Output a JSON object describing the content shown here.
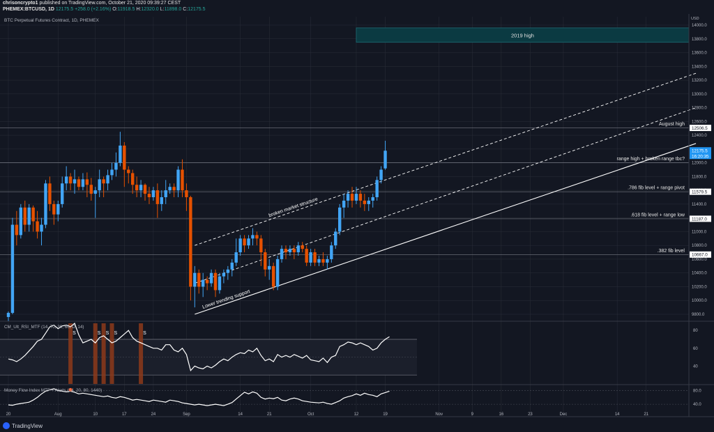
{
  "header": {
    "author": "chrisoncrypto1",
    "published": "published on TradingView.com, October 21, 2020 09:39:27 CEST",
    "symbol": "PHEMEX:BTCUSD, 1D",
    "price": "12175.5",
    "change": "+258.0 (+2.16%)",
    "o_label": "O:",
    "o": "11918.5",
    "h_label": "H:",
    "h": "12320.0",
    "l_label": "L:",
    "l": "11898.0",
    "c_label": "C:",
    "c": "12175.5"
  },
  "footer": {
    "logo_text": "TradingView"
  },
  "colors": {
    "bg": "#131722",
    "up": "#42a5f5",
    "down": "#e65100",
    "grid": "#2a2e39",
    "text": "#d1d4dc",
    "highlight_zone": "#0b3a42"
  },
  "chart_data": {
    "type": "candlestick",
    "title": "BTC Perpetual Futures Contract, 1D, PHEMEX",
    "currency_label": "USD",
    "y_ticks": [
      9800,
      10000,
      10200,
      10400,
      10600,
      10800,
      11000,
      11200,
      11400,
      11600,
      11800,
      12000,
      12200,
      12400,
      12600,
      12800,
      13000,
      13200,
      13400,
      13600,
      13800,
      14000
    ],
    "x_ticks": [
      {
        "label": "20",
        "day": 0
      },
      {
        "label": "Aug",
        "day": 12
      },
      {
        "label": "10",
        "day": 21
      },
      {
        "label": "17",
        "day": 28
      },
      {
        "label": "24",
        "day": 35
      },
      {
        "label": "Sep",
        "day": 43
      },
      {
        "label": "14",
        "day": 56
      },
      {
        "label": "21",
        "day": 63
      },
      {
        "label": "Oct",
        "day": 73
      },
      {
        "label": "12",
        "day": 84
      },
      {
        "label": "19",
        "day": 91
      },
      {
        "label": "Nov",
        "day": 104
      },
      {
        "label": "9",
        "day": 112
      },
      {
        "label": "16",
        "day": 119
      },
      {
        "label": "23",
        "day": 126
      },
      {
        "label": "Dec",
        "day": 134
      },
      {
        "label": "14",
        "day": 147
      },
      {
        "label": "21",
        "day": 154
      }
    ],
    "candles": [
      [
        9760,
        9840,
        9700,
        9820
      ],
      [
        9820,
        11200,
        9800,
        11100
      ],
      [
        11100,
        11300,
        10800,
        10950
      ],
      [
        10950,
        11400,
        10900,
        11350
      ],
      [
        11350,
        11450,
        11000,
        11100
      ],
      [
        11100,
        11400,
        11000,
        11350
      ],
      [
        11350,
        11380,
        11000,
        11150
      ],
      [
        11150,
        11300,
        10900,
        11000
      ],
      [
        11000,
        11200,
        10800,
        11100
      ],
      [
        11100,
        11750,
        11050,
        11700
      ],
      [
        11700,
        11800,
        11300,
        11400
      ],
      [
        11400,
        11450,
        11100,
        11250
      ],
      [
        11250,
        11450,
        11150,
        11400
      ],
      [
        11400,
        11800,
        11350,
        11700
      ],
      [
        11700,
        11950,
        11600,
        11800
      ],
      [
        11800,
        11850,
        11600,
        11700
      ],
      [
        11700,
        11900,
        11550,
        11760
      ],
      [
        11760,
        11800,
        11600,
        11650
      ],
      [
        11650,
        11850,
        11600,
        11760
      ],
      [
        11760,
        11860,
        11500,
        11680
      ],
      [
        11680,
        11780,
        11450,
        11550
      ],
      [
        11550,
        11650,
        11200,
        11600
      ],
      [
        11600,
        11900,
        11500,
        11760
      ],
      [
        11760,
        11800,
        11500,
        11700
      ],
      [
        11700,
        11900,
        11600,
        11820
      ],
      [
        11820,
        12000,
        11750,
        11900
      ],
      [
        11900,
        12150,
        11800,
        12000
      ],
      [
        12000,
        12450,
        11950,
        12250
      ],
      [
        12250,
        12300,
        11650,
        11900
      ],
      [
        11900,
        11950,
        11700,
        11850
      ],
      [
        11850,
        11900,
        11550,
        11680
      ],
      [
        11680,
        11800,
        11500,
        11600
      ],
      [
        11600,
        11750,
        11500,
        11680
      ],
      [
        11680,
        11700,
        11450,
        11550
      ],
      [
        11550,
        11650,
        11400,
        11500
      ],
      [
        11500,
        11650,
        11450,
        11600
      ],
      [
        11600,
        11700,
        11200,
        11400
      ],
      [
        11400,
        11600,
        11300,
        11500
      ],
      [
        11500,
        11750,
        11400,
        11600
      ],
      [
        11600,
        11700,
        11550,
        11650
      ],
      [
        11650,
        11700,
        11500,
        11600
      ],
      [
        11600,
        11950,
        11500,
        11900
      ],
      [
        11900,
        12050,
        11500,
        11600
      ],
      [
        11600,
        11700,
        11300,
        11500
      ],
      [
        11500,
        11520,
        10000,
        10200
      ],
      [
        10200,
        10500,
        9900,
        10400
      ],
      [
        10400,
        10450,
        10100,
        10200
      ],
      [
        10200,
        10400,
        10050,
        10300
      ],
      [
        10300,
        10350,
        10150,
        10250
      ],
      [
        10250,
        10450,
        10200,
        10400
      ],
      [
        10400,
        10450,
        10050,
        10150
      ],
      [
        10150,
        10400,
        10100,
        10350
      ],
      [
        10350,
        10450,
        10250,
        10400
      ],
      [
        10400,
        10500,
        10300,
        10450
      ],
      [
        10450,
        10600,
        10350,
        10550
      ],
      [
        10550,
        10900,
        10500,
        10700
      ],
      [
        10700,
        10950,
        10650,
        10900
      ],
      [
        10900,
        10950,
        10700,
        10800
      ],
      [
        10800,
        10950,
        10750,
        10900
      ],
      [
        10900,
        11050,
        10800,
        10950
      ],
      [
        10950,
        11000,
        10800,
        10900
      ],
      [
        10900,
        10950,
        10500,
        10700
      ],
      [
        10700,
        10750,
        10350,
        10450
      ],
      [
        10450,
        10600,
        10300,
        10500
      ],
      [
        10500,
        10550,
        10150,
        10200
      ],
      [
        10200,
        10650,
        10150,
        10600
      ],
      [
        10600,
        10800,
        10550,
        10750
      ],
      [
        10750,
        10800,
        10600,
        10700
      ],
      [
        10700,
        10800,
        10650,
        10750
      ],
      [
        10750,
        10800,
        10600,
        10700
      ],
      [
        10700,
        10850,
        10650,
        10800
      ],
      [
        10800,
        10850,
        10700,
        10750
      ],
      [
        10750,
        10800,
        10500,
        10550
      ],
      [
        10550,
        10750,
        10500,
        10700
      ],
      [
        10700,
        10750,
        10500,
        10550
      ],
      [
        10550,
        10650,
        10500,
        10600
      ],
      [
        10600,
        10700,
        10500,
        10550
      ],
      [
        10550,
        10650,
        10450,
        10600
      ],
      [
        10600,
        10850,
        10550,
        10800
      ],
      [
        10800,
        11050,
        10750,
        11000
      ],
      [
        11000,
        11400,
        10950,
        11350
      ],
      [
        11350,
        11550,
        11200,
        11450
      ],
      [
        11450,
        11600,
        11350,
        11550
      ],
      [
        11550,
        11650,
        11350,
        11450
      ],
      [
        11450,
        11650,
        11400,
        11550
      ],
      [
        11550,
        11600,
        11350,
        11450
      ],
      [
        11450,
        11550,
        11300,
        11400
      ],
      [
        11400,
        11500,
        11300,
        11450
      ],
      [
        11450,
        11550,
        11350,
        11500
      ],
      [
        11500,
        11800,
        11450,
        11750
      ],
      [
        11750,
        11950,
        11700,
        11900
      ],
      [
        11918.5,
        12320,
        11898,
        12175.5
      ]
    ],
    "horizontal_levels": [
      {
        "price": 12506.5,
        "label": "August high",
        "tag": "12506.5"
      },
      {
        "price": 12000,
        "label": "range high + broken range tbc?",
        "tag": ""
      },
      {
        "price": 11579.5,
        "label": ".786 fib level + range pivot",
        "tag": "11579.5"
      },
      {
        "price": 11187.0,
        "label": ".618 fib level + range low",
        "tag": "11187.0"
      },
      {
        "price": 10667.0,
        "label": ".382 fib level",
        "tag": "10667.0"
      }
    ],
    "last_price_tag": "12175.5",
    "countdown_tag": "16:20:35",
    "zone": {
      "label": "2019 high",
      "price_low": 13750,
      "price_high": 13960,
      "day_start": 84,
      "day_end": 166
    },
    "trendlines": [
      {
        "name": "lower-trending-support",
        "style": "solid",
        "label": "Lower trending support",
        "p1": [
          45,
          9800
        ],
        "p2": [
          166,
          12280
        ]
      },
      {
        "name": "upper-dashed-channel",
        "style": "dashed",
        "label": "broken market structure",
        "p1": [
          45,
          10800
        ],
        "p2": [
          166,
          13300
        ]
      },
      {
        "name": "middle-dashed-channel",
        "style": "dashed",
        "label": "",
        "p1": [
          45,
          10250
        ],
        "p2": [
          166,
          12800
        ]
      }
    ],
    "rsi": {
      "title": "CM_Ult_RSI_MTF (14, 70, 30, 60, D, 14)",
      "levels": [
        70,
        30
      ],
      "ticks": [
        80,
        60,
        40
      ],
      "signal_label": "S",
      "signals": [
        15,
        21,
        23,
        25,
        32
      ],
      "values": [
        48,
        47,
        45,
        48,
        52,
        57,
        62,
        68,
        70,
        77,
        84,
        86,
        82,
        85,
        86,
        84,
        88,
        75,
        66,
        68,
        70,
        66,
        72,
        74,
        70,
        66,
        68,
        72,
        76,
        80,
        72,
        68,
        66,
        64,
        62,
        60,
        60,
        58,
        64,
        64,
        58,
        56,
        60,
        53,
        35,
        40,
        38,
        37,
        40,
        38,
        41,
        45,
        48,
        46,
        50,
        53,
        55,
        54,
        58,
        56,
        60,
        52,
        46,
        48,
        45,
        53,
        50,
        52,
        50,
        53,
        51,
        49,
        52,
        47,
        46,
        45,
        49,
        44,
        50,
        52,
        62,
        64,
        67,
        66,
        64,
        66,
        64,
        62,
        58,
        60,
        66,
        70,
        73
      ]
    },
    "mfi": {
      "title": "Money Flow Index MTF + Alerts (14, 20, 80, 1440)",
      "ticks": [
        80.0,
        40.0
      ],
      "values": [
        38,
        37,
        40,
        42,
        44,
        46,
        52,
        60,
        70,
        78,
        82,
        85,
        80,
        78,
        76,
        78,
        75,
        70,
        72,
        70,
        68,
        66,
        64,
        62,
        64,
        60,
        58,
        62,
        60,
        56,
        52,
        54,
        52,
        50,
        48,
        52,
        50,
        48,
        46,
        52,
        50,
        48,
        44,
        42,
        40,
        38,
        40,
        38,
        36,
        38,
        40,
        38,
        36,
        40,
        45,
        55,
        65,
        75,
        70,
        76,
        72,
        60,
        55,
        58,
        56,
        60,
        52,
        50,
        55,
        58,
        55,
        50,
        48,
        46,
        45,
        44,
        46,
        42,
        40,
        45,
        50,
        58,
        62,
        65,
        70,
        66,
        72,
        68,
        66,
        62,
        70,
        74,
        78
      ]
    }
  }
}
